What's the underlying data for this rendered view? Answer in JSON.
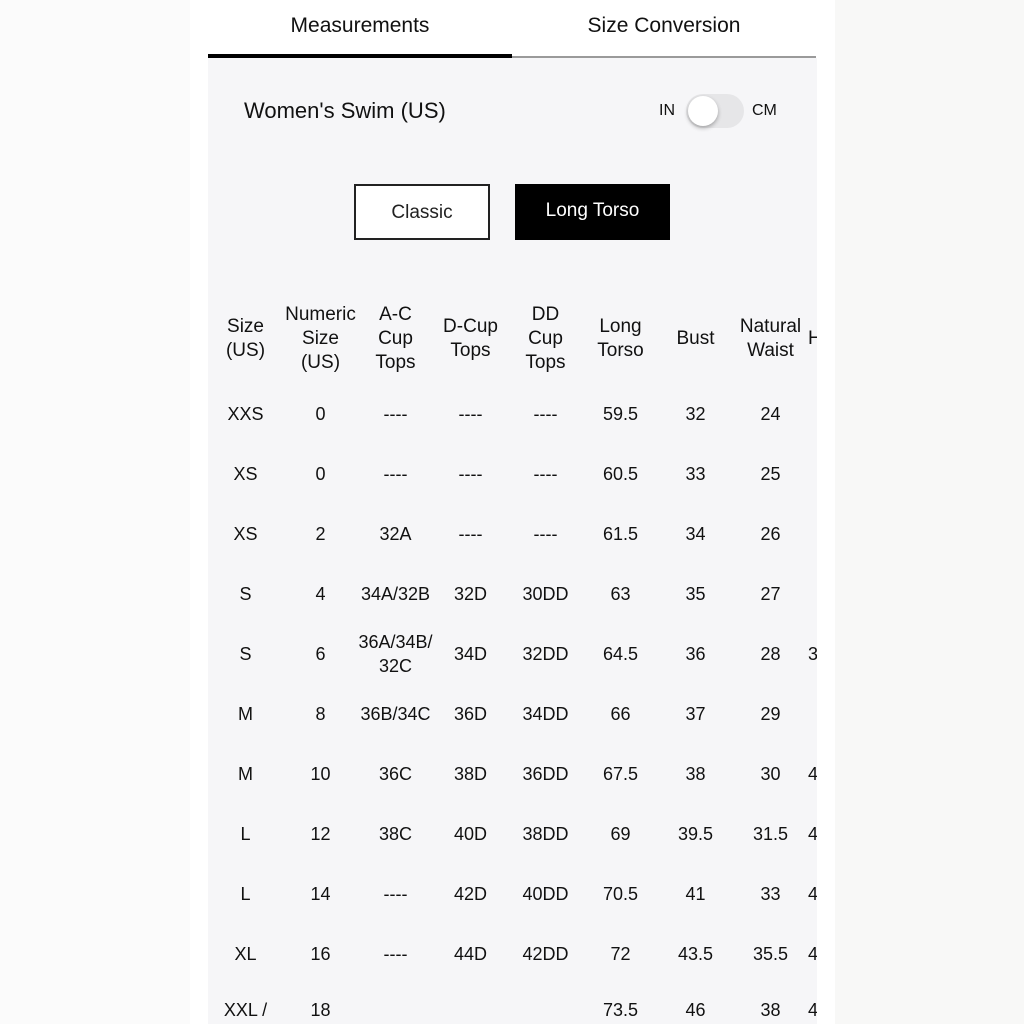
{
  "tabs": [
    {
      "label": "Measurements",
      "active": true
    },
    {
      "label": "Size Conversion",
      "active": false
    }
  ],
  "title": "Women's Swim (US)",
  "unit_toggle": {
    "left": "IN",
    "right": "CM",
    "selected": "IN"
  },
  "fit_buttons": [
    {
      "label": "Classic",
      "selected": false
    },
    {
      "label": "Long Torso",
      "selected": true
    }
  ],
  "table": {
    "headers": [
      "Size\n(US)",
      "Numeric\nSize\n(US)",
      "A-C\nCup\nTops",
      "D-Cup\nTops",
      "DD\nCup\nTops",
      "Long\nTorso",
      "Bust",
      "Natural\nWaist",
      "H"
    ],
    "rows": [
      [
        "XXS",
        "0",
        "----",
        "----",
        "----",
        "59.5",
        "32",
        "24",
        ""
      ],
      [
        "XS",
        "0",
        "----",
        "----",
        "----",
        "60.5",
        "33",
        "25",
        ""
      ],
      [
        "XS",
        "2",
        "32A",
        "----",
        "----",
        "61.5",
        "34",
        "26",
        ""
      ],
      [
        "S",
        "4",
        "34A/32B",
        "32D",
        "30DD",
        "63",
        "35",
        "27",
        ""
      ],
      [
        "S",
        "6",
        "36A/34B/32C",
        "34D",
        "32DD",
        "64.5",
        "36",
        "28",
        "3"
      ],
      [
        "M",
        "8",
        "36B/34C",
        "36D",
        "34DD",
        "66",
        "37",
        "29",
        ""
      ],
      [
        "M",
        "10",
        "36C",
        "38D",
        "36DD",
        "67.5",
        "38",
        "30",
        "4"
      ],
      [
        "L",
        "12",
        "38C",
        "40D",
        "38DD",
        "69",
        "39.5",
        "31.5",
        "4"
      ],
      [
        "L",
        "14",
        "----",
        "42D",
        "40DD",
        "70.5",
        "41",
        "33",
        "4"
      ],
      [
        "XL",
        "16",
        "----",
        "44D",
        "42DD",
        "72",
        "43.5",
        "35.5",
        "4"
      ],
      [
        "XXL /",
        "18",
        "",
        "",
        "",
        "73.5",
        "46",
        "38",
        "4"
      ]
    ]
  }
}
